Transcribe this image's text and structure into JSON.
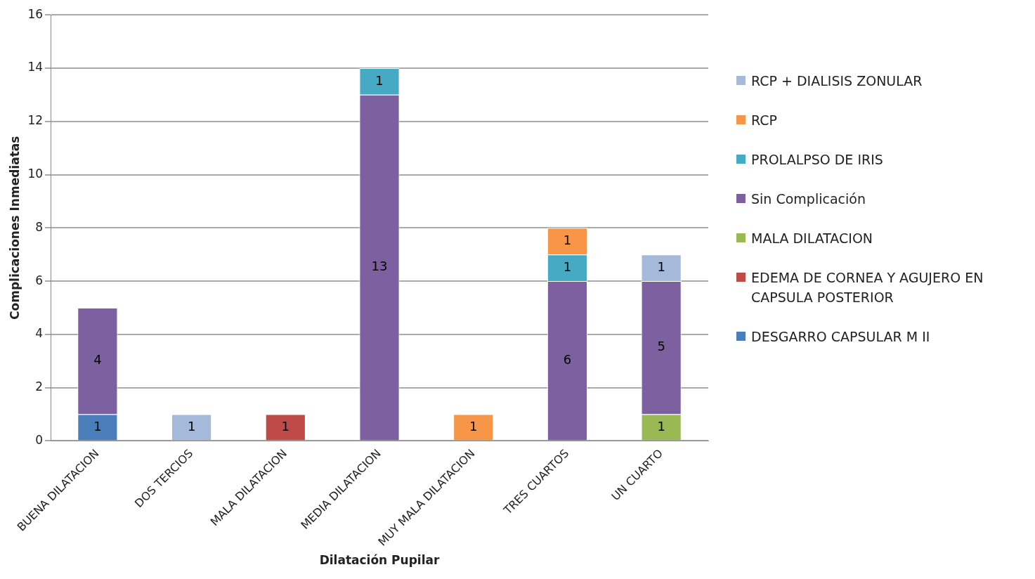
{
  "chart_data": {
    "type": "bar",
    "stacked": true,
    "xlabel": "Dilatación Pupilar",
    "ylabel": "Complicaciones Inmediatas",
    "categories": [
      "BUENA DILATACION",
      "DOS TERCIOS",
      "MALA DILATACION",
      "MEDIA DILATACION",
      "MUY MALA DILATACION",
      "TRES CUARTOS",
      "UN CUARTO"
    ],
    "series": [
      {
        "name": "DESGARRO CAPSULAR M II",
        "color": "#4a7ebb",
        "values": [
          1,
          null,
          null,
          null,
          null,
          null,
          null
        ]
      },
      {
        "name": "EDEMA DE CORNEA Y AGUJERO EN CAPSULA POSTERIOR",
        "color": "#be4b48",
        "values": [
          null,
          null,
          1,
          null,
          null,
          null,
          null
        ]
      },
      {
        "name": "MALA DILATACION",
        "color": "#98b954",
        "values": [
          null,
          null,
          null,
          null,
          null,
          null,
          1
        ]
      },
      {
        "name": "Sin Complicación",
        "color": "#7d60a0",
        "values": [
          4,
          null,
          null,
          13,
          null,
          6,
          5
        ]
      },
      {
        "name": "PROLALPSO DE IRIS",
        "color": "#46aac5",
        "values": [
          null,
          null,
          null,
          1,
          null,
          1,
          null
        ]
      },
      {
        "name": "RCP",
        "color": "#f79646",
        "values": [
          null,
          null,
          null,
          null,
          1,
          1,
          null
        ]
      },
      {
        "name": "RCP + DIALISIS ZONULAR",
        "color": "#a5b9da",
        "values": [
          null,
          1,
          null,
          null,
          null,
          null,
          1
        ]
      }
    ],
    "ylim": [
      0,
      16
    ],
    "yticks": [
      0,
      2,
      4,
      6,
      8,
      10,
      12,
      14,
      16
    ],
    "grid": "y",
    "legend": "right",
    "data_labels": true
  }
}
